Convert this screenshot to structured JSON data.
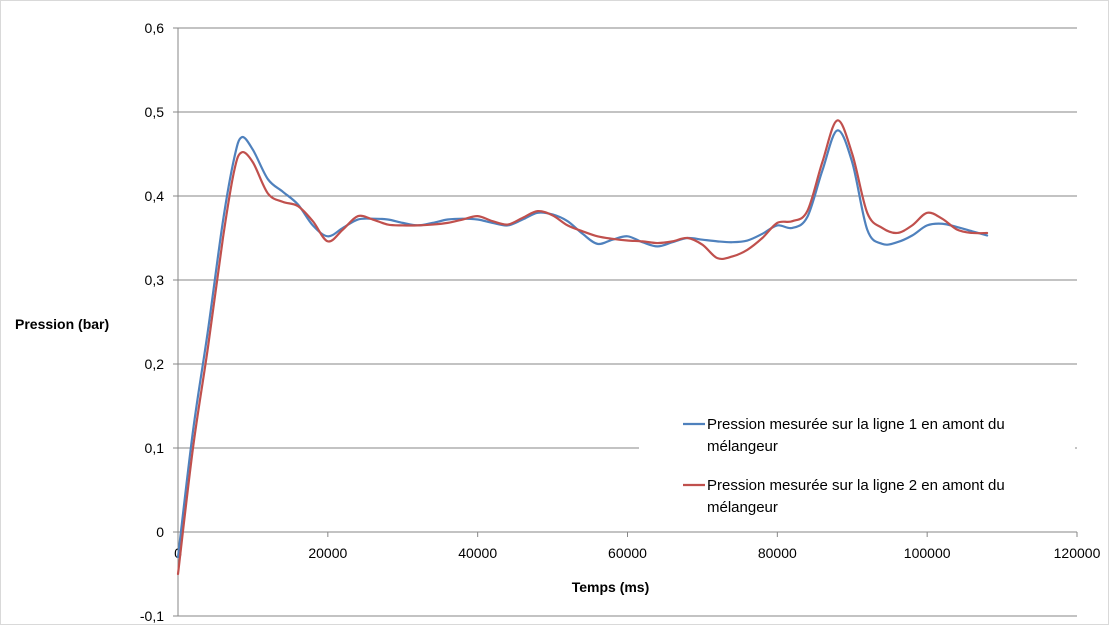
{
  "chart_data": {
    "type": "line",
    "title": "",
    "xlabel": "Temps (ms)",
    "ylabel": "Pression (bar)",
    "xlim": [
      0,
      120000
    ],
    "ylim": [
      -0.1,
      0.6
    ],
    "xticks": [
      0,
      20000,
      40000,
      60000,
      80000,
      100000,
      120000
    ],
    "xtick_labels": [
      "0",
      "20000",
      "40000",
      "60000",
      "80000",
      "100000",
      "120000"
    ],
    "yticks": [
      -0.1,
      0,
      0.1,
      0.2,
      0.3,
      0.4,
      0.5,
      0.6
    ],
    "ytick_labels": [
      "-0,1",
      "0",
      "0,1",
      "0,2",
      "0,3",
      "0,4",
      "0,5",
      "0,6"
    ],
    "grid": "horizontal",
    "legend_position": "right",
    "series": [
      {
        "name": "Pression mesurée sur la ligne 1 en amont du mélangeur",
        "color": "#4f81bd",
        "x": [
          0,
          2000,
          4000,
          6000,
          7500,
          8500,
          10000,
          12000,
          14000,
          16000,
          18000,
          20000,
          22000,
          24000,
          26000,
          28000,
          30000,
          32000,
          34000,
          36000,
          38000,
          40000,
          42000,
          44000,
          46000,
          48000,
          50000,
          52000,
          54000,
          56000,
          58000,
          60000,
          62000,
          64000,
          66000,
          68000,
          70000,
          72000,
          74000,
          76000,
          78000,
          80000,
          82000,
          84000,
          86000,
          88000,
          90000,
          92000,
          94000,
          96000,
          98000,
          100000,
          102000,
          104000,
          106000,
          108000
        ],
        "y": [
          -0.03,
          0.12,
          0.24,
          0.37,
          0.445,
          0.47,
          0.455,
          0.42,
          0.405,
          0.39,
          0.365,
          0.352,
          0.362,
          0.372,
          0.373,
          0.372,
          0.368,
          0.365,
          0.368,
          0.372,
          0.373,
          0.372,
          0.368,
          0.365,
          0.372,
          0.38,
          0.378,
          0.37,
          0.355,
          0.343,
          0.348,
          0.352,
          0.345,
          0.34,
          0.345,
          0.35,
          0.348,
          0.346,
          0.345,
          0.347,
          0.355,
          0.365,
          0.362,
          0.375,
          0.43,
          0.478,
          0.44,
          0.36,
          0.343,
          0.345,
          0.353,
          0.365,
          0.367,
          0.363,
          0.358,
          0.353
        ]
      },
      {
        "name": "Pression mesurée sur la ligne 2 en amont du mélangeur",
        "color": "#c0504d",
        "x": [
          0,
          2000,
          4000,
          6000,
          7500,
          8500,
          10000,
          12000,
          14000,
          16000,
          18000,
          20000,
          22000,
          24000,
          26000,
          28000,
          30000,
          32000,
          34000,
          36000,
          38000,
          40000,
          42000,
          44000,
          46000,
          48000,
          50000,
          52000,
          54000,
          56000,
          58000,
          60000,
          62000,
          64000,
          66000,
          68000,
          70000,
          72000,
          74000,
          76000,
          78000,
          80000,
          82000,
          84000,
          86000,
          88000,
          90000,
          92000,
          94000,
          96000,
          98000,
          100000,
          102000,
          104000,
          106000,
          108000
        ],
        "y": [
          -0.05,
          0.1,
          0.22,
          0.35,
          0.43,
          0.452,
          0.44,
          0.403,
          0.393,
          0.388,
          0.37,
          0.346,
          0.36,
          0.376,
          0.372,
          0.366,
          0.365,
          0.365,
          0.366,
          0.368,
          0.372,
          0.376,
          0.37,
          0.366,
          0.374,
          0.382,
          0.377,
          0.365,
          0.358,
          0.352,
          0.349,
          0.347,
          0.346,
          0.344,
          0.346,
          0.35,
          0.342,
          0.326,
          0.328,
          0.336,
          0.35,
          0.368,
          0.37,
          0.382,
          0.44,
          0.49,
          0.45,
          0.38,
          0.362,
          0.356,
          0.365,
          0.38,
          0.373,
          0.36,
          0.356,
          0.356
        ]
      }
    ]
  }
}
